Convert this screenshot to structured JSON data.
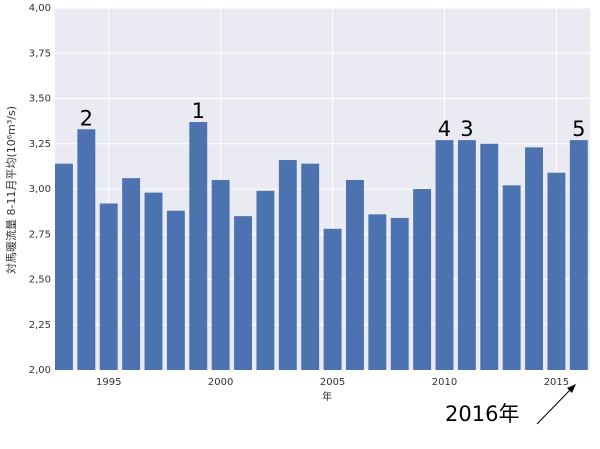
{
  "chart_data": {
    "type": "bar",
    "x": [
      1993,
      1994,
      1995,
      1996,
      1997,
      1998,
      1999,
      2000,
      2001,
      2002,
      2003,
      2004,
      2005,
      2006,
      2007,
      2008,
      2009,
      2010,
      2011,
      2012,
      2013,
      2014,
      2015,
      2016
    ],
    "values": [
      3.14,
      3.33,
      2.92,
      3.06,
      2.98,
      2.88,
      3.37,
      3.05,
      2.85,
      2.99,
      3.16,
      3.14,
      2.78,
      3.05,
      2.86,
      2.84,
      3.0,
      3.27,
      3.27,
      3.25,
      3.02,
      3.23,
      3.09,
      3.27
    ],
    "color": "#4c72b0",
    "xlim": [
      1992.6,
      2016.5
    ],
    "xticks": [
      1995,
      2000,
      2005,
      2010,
      2015
    ],
    "ylim": [
      2,
      4
    ],
    "yticks": [
      {
        "value": 2,
        "label": "2,00"
      },
      {
        "value": 2.25,
        "label": "2,25"
      },
      {
        "value": 2.5,
        "label": "2,50"
      },
      {
        "value": 2.75,
        "label": "2,75"
      },
      {
        "value": 3,
        "label": "3,00"
      },
      {
        "value": 3.25,
        "label": "3,25"
      },
      {
        "value": 3.5,
        "label": "3,50"
      },
      {
        "value": 3.75,
        "label": "3,75"
      },
      {
        "value": 4,
        "label": "4,00"
      }
    ],
    "grid": true,
    "xlabel": "年",
    "ylabel": "対馬暖流量 8-11月平均(10⁶m³/s)",
    "annotations": [
      {
        "text": "2",
        "x": 1994
      },
      {
        "text": "1",
        "x": 1999
      },
      {
        "text": "4",
        "x": 2010
      },
      {
        "text": "3",
        "x": 2011
      },
      {
        "text": "5",
        "x": 2016
      }
    ],
    "arrow_label": "2016年"
  }
}
